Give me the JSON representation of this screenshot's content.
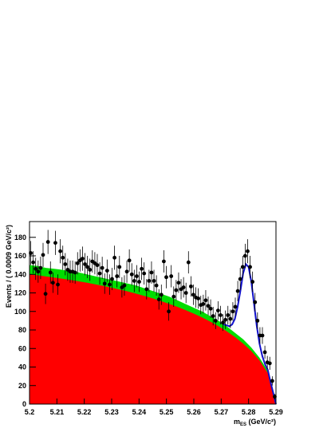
{
  "chart_data": {
    "type": "scatter",
    "y_label": "Events / ( 0.0009 GeV/c²)",
    "x_label": {
      "main": "m",
      "sub": "ES",
      "rest": " (GeV/c²)"
    },
    "xlim": [
      5.2,
      5.29
    ],
    "ylim": [
      0,
      197
    ],
    "xticks": [
      5.2,
      5.21,
      5.22,
      5.23,
      5.24,
      5.25,
      5.26,
      5.27,
      5.28,
      5.29
    ],
    "yticks": [
      0,
      20,
      40,
      60,
      80,
      100,
      120,
      140,
      160,
      180
    ],
    "series": [
      {
        "kind": "area",
        "color": "#00dd00",
        "x": [
          5.2,
          5.203,
          5.206,
          5.209,
          5.212,
          5.215,
          5.218,
          5.221,
          5.224,
          5.227,
          5.23,
          5.233,
          5.236,
          5.239,
          5.242,
          5.245,
          5.248,
          5.251,
          5.254,
          5.257,
          5.26,
          5.263,
          5.266,
          5.269,
          5.272,
          5.275,
          5.278,
          5.281,
          5.284,
          5.287,
          5.29
        ],
        "values": [
          150,
          149,
          147,
          146,
          145,
          143,
          142,
          140,
          138,
          136,
          134,
          132,
          130,
          128,
          125,
          122,
          119,
          116,
          112,
          108,
          104,
          100,
          95,
          90,
          84,
          77,
          70,
          61,
          50,
          36,
          0
        ]
      },
      {
        "kind": "area",
        "color": "#ff0000",
        "x": [
          5.2,
          5.203,
          5.206,
          5.209,
          5.212,
          5.215,
          5.218,
          5.221,
          5.224,
          5.227,
          5.23,
          5.233,
          5.236,
          5.239,
          5.242,
          5.245,
          5.248,
          5.251,
          5.254,
          5.257,
          5.26,
          5.263,
          5.266,
          5.269,
          5.272,
          5.275,
          5.278,
          5.281,
          5.284,
          5.287,
          5.29
        ],
        "values": [
          140,
          139,
          137.8,
          136.6,
          135.3,
          134,
          132.5,
          131,
          129.3,
          127.5,
          125.6,
          123.6,
          121.5,
          119.2,
          116.7,
          114.1,
          111.2,
          108.2,
          105,
          101.4,
          97.6,
          93.5,
          89,
          84.1,
          78.6,
          72.4,
          65.4,
          57.2,
          47.1,
          33.6,
          0
        ]
      },
      {
        "kind": "line",
        "color": "#1010cc",
        "x": [
          5.27,
          5.271,
          5.272,
          5.273,
          5.274,
          5.275,
          5.276,
          5.277,
          5.278,
          5.279,
          5.28,
          5.281,
          5.282,
          5.283,
          5.284,
          5.285,
          5.286,
          5.287,
          5.288,
          5.289,
          5.29
        ],
        "values": [
          88,
          86,
          85,
          84,
          86,
          92,
          105,
          122,
          141,
          151,
          148,
          132,
          108,
          84,
          65,
          52,
          43,
          37,
          24,
          12,
          0
        ]
      },
      {
        "kind": "points",
        "color": "#000000",
        "x": [
          5.20045,
          5.20135,
          5.20225,
          5.20315,
          5.20405,
          5.20495,
          5.20585,
          5.20675,
          5.20765,
          5.20855,
          5.20945,
          5.21035,
          5.21125,
          5.21215,
          5.21305,
          5.21395,
          5.21485,
          5.21575,
          5.21665,
          5.21755,
          5.21845,
          5.21935,
          5.22025,
          5.22115,
          5.22205,
          5.22295,
          5.22385,
          5.22475,
          5.22565,
          5.22655,
          5.22745,
          5.22835,
          5.22925,
          5.23015,
          5.23105,
          5.23195,
          5.23285,
          5.23375,
          5.23465,
          5.23555,
          5.23645,
          5.23735,
          5.23825,
          5.23915,
          5.24005,
          5.24095,
          5.24185,
          5.24275,
          5.24365,
          5.24455,
          5.24545,
          5.24635,
          5.24725,
          5.24815,
          5.24905,
          5.24995,
          5.25085,
          5.25175,
          5.25265,
          5.25355,
          5.25445,
          5.25535,
          5.25625,
          5.25715,
          5.25805,
          5.25895,
          5.25985,
          5.26075,
          5.26165,
          5.26255,
          5.26345,
          5.26435,
          5.26525,
          5.26615,
          5.26705,
          5.26795,
          5.26885,
          5.26975,
          5.27065,
          5.27155,
          5.27245,
          5.27335,
          5.27425,
          5.27515,
          5.27605,
          5.27695,
          5.27785,
          5.27875,
          5.27965,
          5.28055,
          5.28145,
          5.28235,
          5.28325,
          5.28415,
          5.28505,
          5.28595,
          5.28685,
          5.28775,
          5.28865,
          5.28955
        ],
        "values": [
          163,
          153,
          146,
          143,
          147,
          161,
          119,
          175,
          142,
          131,
          174,
          129,
          165,
          158,
          151,
          145,
          143,
          143,
          142,
          152,
          155,
          157,
          151,
          148,
          145,
          154,
          152,
          150,
          141,
          147,
          130,
          144,
          129,
          135,
          158,
          138,
          148,
          126,
          128,
          143,
          155,
          140,
          133,
          138,
          132,
          146,
          141,
          124,
          133,
          142,
          133,
          128,
          113,
          118,
          154,
          137,
          100,
          138,
          116,
          123,
          131,
          124,
          126,
          120,
          153,
          127,
          118,
          115,
          114,
          107,
          108,
          112,
          106,
          103,
          95,
          90,
          101,
          96,
          88,
          91,
          96,
          92,
          100,
          105,
          122,
          135,
          148,
          160,
          165,
          148,
          132,
          110,
          90,
          74,
          74,
          56,
          45,
          44,
          25,
          8
        ],
        "errors": [
          13,
          12,
          12,
          12,
          12,
          13,
          11,
          13,
          12,
          11,
          13,
          11,
          13,
          13,
          12,
          12,
          12,
          12,
          12,
          12,
          12,
          13,
          12,
          12,
          12,
          12,
          12,
          12,
          12,
          12,
          11,
          12,
          11,
          12,
          13,
          12,
          12,
          11,
          11,
          12,
          12,
          12,
          12,
          12,
          11,
          12,
          12,
          11,
          12,
          12,
          12,
          11,
          11,
          11,
          12,
          12,
          10,
          12,
          11,
          11,
          11,
          11,
          11,
          11,
          12,
          11,
          11,
          11,
          11,
          10,
          10,
          11,
          10,
          10,
          10,
          9,
          10,
          10,
          9,
          10,
          10,
          10,
          10,
          10,
          11,
          12,
          12,
          13,
          13,
          12,
          11,
          10,
          9,
          9,
          9,
          7,
          7,
          7,
          5,
          3
        ]
      }
    ]
  }
}
